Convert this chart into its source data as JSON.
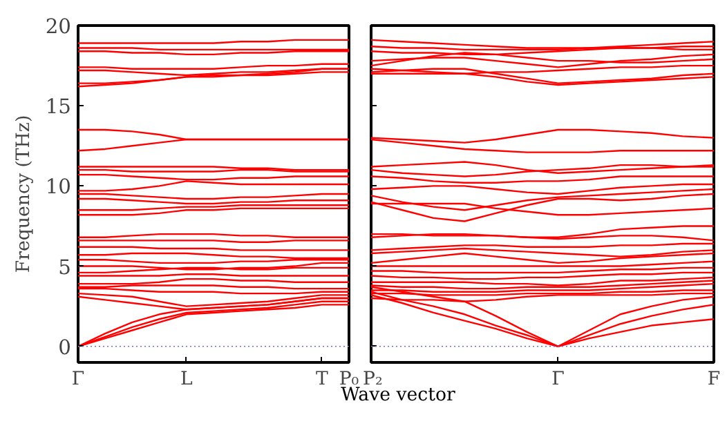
{
  "chart_data": [
    {
      "type": "line",
      "ylabel": "Frequency (THz)",
      "xlabel": "Wave vector",
      "color": "#ff0000",
      "line_style": "solid",
      "grid": false,
      "categories": [
        "Γ",
        null,
        null,
        null,
        "L",
        null,
        null,
        null,
        null,
        "T",
        "P₀"
      ],
      "ylim": [
        -1,
        20
      ],
      "yticks": [
        0,
        5,
        10,
        15,
        20
      ],
      "ref_lines": [
        {
          "axis": "y",
          "value": 0,
          "label": null,
          "color": "#6a6ae0",
          "line_style": "dotted"
        }
      ],
      "series": [
        {
          "values": [
            18.9,
            18.9,
            18.9,
            18.9,
            18.9,
            18.9,
            19.0,
            19.0,
            19.1,
            19.1,
            19.1
          ]
        },
        {
          "values": [
            18.6,
            18.6,
            18.6,
            18.5,
            18.5,
            18.5,
            18.5,
            18.5,
            18.5,
            18.5,
            18.5
          ]
        },
        {
          "values": [
            18.4,
            18.4,
            18.3,
            18.3,
            18.2,
            18.2,
            18.3,
            18.3,
            18.4,
            18.4,
            18.4
          ]
        },
        {
          "values": [
            17.4,
            17.4,
            17.3,
            17.3,
            17.3,
            17.3,
            17.4,
            17.5,
            17.5,
            17.6,
            17.6
          ]
        },
        {
          "values": [
            17.2,
            17.2,
            17.1,
            17.0,
            16.9,
            17.0,
            17.1,
            17.1,
            17.2,
            17.3,
            17.3
          ]
        },
        {
          "values": [
            16.4,
            16.4,
            16.5,
            16.6,
            16.8,
            16.9,
            16.9,
            17.0,
            17.1,
            17.3,
            17.3
          ]
        },
        {
          "values": [
            16.2,
            16.3,
            16.4,
            16.6,
            16.8,
            16.8,
            16.9,
            16.9,
            17.0,
            17.1,
            17.1
          ]
        },
        {
          "values": [
            13.5,
            13.5,
            13.4,
            13.2,
            12.9,
            12.9,
            12.9,
            12.9,
            12.9,
            12.9,
            12.9
          ]
        },
        {
          "values": [
            12.2,
            12.3,
            12.5,
            12.7,
            12.9,
            12.9,
            12.9,
            12.9,
            12.9,
            12.9,
            12.9
          ]
        },
        {
          "values": [
            11.2,
            11.2,
            11.2,
            11.2,
            11.2,
            11.2,
            11.1,
            11.1,
            11.0,
            11.0,
            11.0
          ]
        },
        {
          "values": [
            11.0,
            11.0,
            10.9,
            10.9,
            10.9,
            10.9,
            11.0,
            11.0,
            10.9,
            10.9,
            10.9
          ]
        },
        {
          "values": [
            10.7,
            10.7,
            10.6,
            10.5,
            10.4,
            10.4,
            10.5,
            10.5,
            10.6,
            10.6,
            10.6
          ]
        },
        {
          "values": [
            9.7,
            9.7,
            9.8,
            10.0,
            10.3,
            10.2,
            10.1,
            10.1,
            10.1,
            10.1,
            10.1
          ]
        },
        {
          "values": [
            9.5,
            9.5,
            9.4,
            9.3,
            9.2,
            9.2,
            9.3,
            9.3,
            9.4,
            9.5,
            9.5
          ]
        },
        {
          "values": [
            9.2,
            9.2,
            9.1,
            9.0,
            8.9,
            8.9,
            9.0,
            9.0,
            9.1,
            9.1,
            9.1
          ]
        },
        {
          "values": [
            8.5,
            8.5,
            8.5,
            8.6,
            8.7,
            8.7,
            8.8,
            8.8,
            8.8,
            8.8,
            8.8
          ]
        },
        {
          "values": [
            8.2,
            8.2,
            8.2,
            8.3,
            8.5,
            8.5,
            8.6,
            8.6,
            8.6,
            8.6,
            8.6
          ]
        },
        {
          "values": [
            6.8,
            6.8,
            6.9,
            7.0,
            7.0,
            7.0,
            6.9,
            6.9,
            6.8,
            6.8,
            6.8
          ]
        },
        {
          "values": [
            6.6,
            6.6,
            6.6,
            6.6,
            6.6,
            6.6,
            6.5,
            6.5,
            6.6,
            6.6,
            6.6
          ]
        },
        {
          "values": [
            6.2,
            6.2,
            6.2,
            6.1,
            6.1,
            6.1,
            6.0,
            6.0,
            6.0,
            6.0,
            6.0
          ]
        },
        {
          "values": [
            5.7,
            5.7,
            5.8,
            5.8,
            5.8,
            5.7,
            5.6,
            5.6,
            5.5,
            5.5,
            5.5
          ]
        },
        {
          "values": [
            5.4,
            5.4,
            5.3,
            5.2,
            5.2,
            5.2,
            5.3,
            5.3,
            5.4,
            5.4,
            5.4
          ]
        },
        {
          "values": [
            5.0,
            5.0,
            5.0,
            4.9,
            4.8,
            4.8,
            4.9,
            4.9,
            5.0,
            5.2,
            5.2
          ]
        },
        {
          "values": [
            4.6,
            4.6,
            4.7,
            4.8,
            4.9,
            4.9,
            4.8,
            4.8,
            4.9,
            4.9,
            4.9
          ]
        },
        {
          "values": [
            4.4,
            4.4,
            4.4,
            4.4,
            4.5,
            4.5,
            4.4,
            4.4,
            4.4,
            4.4,
            4.4
          ]
        },
        {
          "values": [
            3.9,
            3.9,
            3.9,
            4.0,
            4.2,
            4.2,
            4.1,
            4.1,
            4.0,
            4.0,
            4.0
          ]
        },
        {
          "values": [
            3.7,
            3.7,
            3.8,
            3.8,
            3.8,
            3.8,
            3.7,
            3.7,
            3.6,
            3.6,
            3.6
          ]
        },
        {
          "values": [
            3.6,
            3.6,
            3.5,
            3.4,
            3.4,
            3.4,
            3.3,
            3.3,
            3.3,
            3.4,
            3.4
          ]
        },
        {
          "values": [
            3.3,
            3.2,
            3.1,
            2.8,
            2.5,
            2.6,
            2.7,
            2.8,
            3.0,
            3.2,
            3.2
          ]
        },
        {
          "values": [
            3.1,
            2.9,
            2.7,
            2.5,
            2.3,
            2.4,
            2.5,
            2.6,
            2.8,
            3.0,
            3.0
          ]
        },
        {
          "values": [
            0,
            0.8,
            1.5,
            2.0,
            2.3,
            2.4,
            2.5,
            2.6,
            2.8,
            3.0,
            3.0
          ]
        },
        {
          "values": [
            0,
            0.6,
            1.2,
            1.7,
            2.1,
            2.2,
            2.3,
            2.4,
            2.6,
            2.8,
            2.8
          ]
        },
        {
          "values": [
            0,
            0.5,
            1.0,
            1.5,
            2.0,
            2.1,
            2.2,
            2.3,
            2.4,
            2.6,
            2.6
          ]
        }
      ]
    },
    {
      "type": "line",
      "color": "#ff0000",
      "line_style": "solid",
      "grid": false,
      "tick_labels": "x",
      "categories": [
        "P₂",
        null,
        null,
        null,
        null,
        null,
        "Γ",
        null,
        null,
        null,
        null,
        "F"
      ],
      "ylim": [
        -1,
        20
      ],
      "yticks": [
        0,
        5,
        10,
        15,
        20
      ],
      "ref_lines": [
        {
          "axis": "y",
          "value": 0,
          "label": null,
          "color": "#6a6ae0",
          "line_style": "dotted"
        }
      ],
      "series": [
        {
          "values": [
            19.1,
            19.0,
            18.9,
            18.8,
            18.7,
            18.6,
            18.6,
            18.6,
            18.6,
            18.6,
            18.7,
            18.7
          ]
        },
        {
          "values": [
            18.7,
            18.6,
            18.6,
            18.5,
            18.5,
            18.5,
            18.5,
            18.6,
            18.7,
            18.8,
            18.9,
            19.0
          ]
        },
        {
          "values": [
            18.4,
            18.3,
            18.3,
            18.2,
            18.2,
            18.3,
            18.4,
            18.5,
            18.6,
            18.6,
            18.5,
            18.5
          ]
        },
        {
          "values": [
            17.5,
            17.8,
            18.1,
            18.3,
            18.2,
            18.0,
            17.8,
            17.8,
            17.7,
            17.7,
            17.8,
            17.9
          ]
        },
        {
          "values": [
            17.8,
            17.9,
            18.0,
            18.0,
            17.8,
            17.6,
            17.4,
            17.6,
            17.8,
            17.9,
            18.1,
            18.2
          ]
        },
        {
          "values": [
            17.3,
            17.2,
            17.1,
            17.0,
            17.1,
            17.1,
            17.2,
            17.3,
            17.4,
            17.4,
            17.5,
            17.5
          ]
        },
        {
          "values": [
            17.1,
            17.2,
            17.3,
            17.3,
            17.0,
            16.7,
            16.4,
            16.5,
            16.6,
            16.7,
            16.9,
            17.0
          ]
        },
        {
          "values": [
            17.0,
            17.0,
            17.0,
            17.0,
            16.8,
            16.5,
            16.3,
            16.4,
            16.5,
            16.6,
            16.7,
            16.8
          ]
        },
        {
          "values": [
            13.0,
            12.9,
            12.8,
            12.7,
            12.9,
            13.2,
            13.5,
            13.5,
            13.4,
            13.3,
            13.1,
            13.0
          ]
        },
        {
          "values": [
            12.9,
            12.7,
            12.5,
            12.3,
            12.2,
            12.1,
            12.1,
            12.1,
            12.2,
            12.2,
            12.2,
            12.2
          ]
        },
        {
          "values": [
            11.2,
            11.3,
            11.4,
            11.5,
            11.3,
            11.0,
            10.8,
            10.9,
            11.0,
            11.1,
            11.2,
            11.3
          ]
        },
        {
          "values": [
            11.0,
            10.8,
            10.7,
            10.6,
            10.7,
            10.9,
            11.0,
            11.1,
            11.3,
            11.3,
            11.2,
            11.2
          ]
        },
        {
          "values": [
            10.6,
            10.5,
            10.3,
            10.2,
            10.2,
            10.3,
            10.3,
            10.4,
            10.6,
            10.6,
            10.6,
            10.6
          ]
        },
        {
          "values": [
            9.8,
            9.9,
            10.0,
            10.0,
            9.8,
            9.6,
            9.5,
            9.7,
            9.9,
            10.0,
            10.1,
            10.1
          ]
        },
        {
          "values": [
            9.4,
            9.0,
            8.7,
            8.5,
            8.8,
            9.1,
            9.3,
            9.4,
            9.5,
            9.6,
            9.7,
            9.8
          ]
        },
        {
          "values": [
            9.0,
            8.5,
            8.0,
            7.8,
            8.3,
            8.8,
            9.2,
            9.2,
            9.1,
            9.2,
            9.4,
            9.5
          ]
        },
        {
          "values": [
            8.9,
            8.9,
            8.9,
            8.9,
            8.6,
            8.4,
            8.2,
            8.2,
            8.3,
            8.4,
            8.5,
            8.6
          ]
        },
        {
          "values": [
            7.0,
            7.0,
            6.9,
            6.9,
            6.9,
            6.8,
            6.8,
            7.0,
            7.3,
            7.4,
            7.5,
            7.5
          ]
        },
        {
          "values": [
            6.8,
            6.9,
            7.0,
            7.0,
            6.9,
            6.8,
            6.7,
            6.8,
            6.9,
            6.9,
            6.8,
            6.6
          ]
        },
        {
          "values": [
            6.0,
            6.1,
            6.2,
            6.3,
            6.3,
            6.2,
            6.2,
            6.2,
            6.3,
            6.3,
            6.4,
            6.4
          ]
        },
        {
          "values": [
            5.8,
            5.9,
            6.0,
            6.1,
            6.0,
            5.9,
            5.8,
            5.7,
            5.6,
            5.7,
            5.9,
            6.0
          ]
        },
        {
          "values": [
            5.2,
            5.4,
            5.6,
            5.8,
            5.6,
            5.4,
            5.2,
            5.3,
            5.5,
            5.6,
            5.7,
            5.8
          ]
        },
        {
          "values": [
            5.0,
            5.0,
            5.0,
            5.0,
            5.0,
            5.0,
            5.0,
            5.0,
            5.0,
            5.1,
            5.2,
            5.3
          ]
        },
        {
          "values": [
            4.7,
            4.7,
            4.6,
            4.6,
            4.6,
            4.6,
            4.6,
            4.7,
            4.8,
            4.8,
            4.9,
            4.9
          ]
        },
        {
          "values": [
            4.4,
            4.3,
            4.3,
            4.2,
            4.2,
            4.3,
            4.3,
            4.4,
            4.5,
            4.5,
            4.6,
            4.6
          ]
        },
        {
          "values": [
            4.0,
            4.0,
            4.0,
            4.0,
            3.9,
            3.9,
            3.8,
            3.9,
            4.1,
            4.1,
            4.2,
            4.3
          ]
        },
        {
          "values": [
            3.8,
            3.7,
            3.7,
            3.6,
            3.6,
            3.7,
            3.7,
            3.7,
            3.8,
            3.9,
            4.0,
            4.1
          ]
        },
        {
          "values": [
            3.5,
            3.5,
            3.4,
            3.4,
            3.4,
            3.5,
            3.5,
            3.5,
            3.6,
            3.7,
            3.8,
            3.9
          ]
        },
        {
          "values": [
            3.3,
            3.3,
            3.2,
            3.2,
            3.2,
            3.3,
            3.3,
            3.3,
            3.4,
            3.4,
            3.5,
            3.5
          ]
        },
        {
          "values": [
            3.0,
            2.9,
            2.9,
            2.8,
            2.9,
            3.1,
            3.2,
            3.2,
            3.2,
            3.2,
            3.3,
            3.3
          ]
        },
        {
          "values": [
            3.7,
            3.4,
            3.1,
            2.8,
            1.9,
            0.9,
            0,
            1.0,
            2.0,
            2.5,
            2.9,
            3.1
          ]
        },
        {
          "values": [
            3.4,
            2.9,
            2.5,
            2.0,
            1.3,
            0.7,
            0,
            0.7,
            1.4,
            1.9,
            2.3,
            2.6
          ]
        },
        {
          "values": [
            3.2,
            2.7,
            2.1,
            1.6,
            1.1,
            0.5,
            0,
            0.5,
            0.9,
            1.3,
            1.5,
            1.7
          ]
        }
      ]
    }
  ]
}
